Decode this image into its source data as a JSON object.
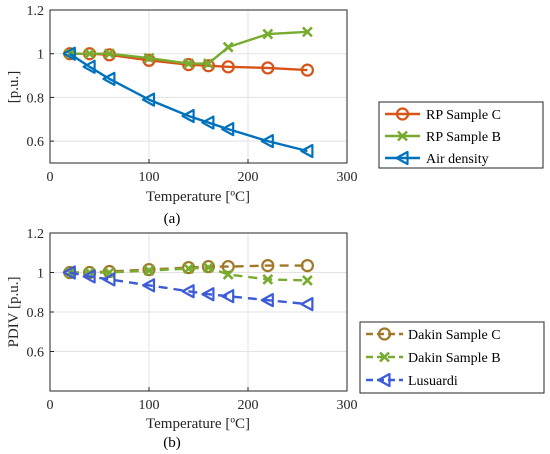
{
  "chart_data": [
    {
      "type": "line",
      "panel_id": "a",
      "caption": "(a)",
      "xlabel": "Temperature [ºC]",
      "ylabel": "[p.u.]",
      "xlim": [
        0,
        300
      ],
      "ylim": [
        0.5,
        1.2
      ],
      "xticks": [
        0,
        100,
        200,
        300
      ],
      "yticks": [
        0.6,
        0.8,
        1,
        1.2
      ],
      "xtick_labels": [
        "0",
        "100",
        "200",
        "300"
      ],
      "ytick_labels": [
        "0.6",
        "0.8",
        "1",
        "1.2"
      ],
      "grid": true,
      "legend_position": "right",
      "series": [
        {
          "name": "RP Sample C",
          "color": "#d95319",
          "marker": "circle",
          "dashed": false,
          "x": [
            20,
            40,
            60,
            100,
            140,
            160,
            180,
            220,
            260
          ],
          "y": [
            1.0,
            1.0,
            0.995,
            0.97,
            0.95,
            0.945,
            0.94,
            0.935,
            0.925
          ]
        },
        {
          "name": "RP Sample B",
          "color": "#77ac30",
          "marker": "x",
          "dashed": false,
          "x": [
            20,
            40,
            60,
            100,
            140,
            160,
            180,
            220,
            260
          ],
          "y": [
            1.0,
            1.0,
            1.0,
            0.98,
            0.955,
            0.955,
            1.03,
            1.09,
            1.1
          ]
        },
        {
          "name": "Air density",
          "color": "#0072bd",
          "marker": "triangle-left",
          "dashed": false,
          "x": [
            20,
            40,
            60,
            100,
            140,
            160,
            180,
            220,
            260
          ],
          "y": [
            1.0,
            0.94,
            0.885,
            0.79,
            0.715,
            0.685,
            0.655,
            0.6,
            0.555
          ]
        }
      ]
    },
    {
      "type": "line",
      "panel_id": "b",
      "caption": "(b)",
      "xlabel": "Temperature [ºC]",
      "ylabel": "PDIV [p.u.]",
      "xlim": [
        0,
        300
      ],
      "ylim": [
        0.4,
        1.2
      ],
      "xticks": [
        0,
        100,
        200,
        300
      ],
      "yticks": [
        0.6,
        0.8,
        1,
        1.2
      ],
      "xtick_labels": [
        "0",
        "100",
        "200",
        "300"
      ],
      "ytick_labels": [
        "0.6",
        "0.8",
        "1",
        "1.2"
      ],
      "grid": true,
      "legend_position": "right",
      "series": [
        {
          "name": "Dakin Sample C",
          "color": "#a0782a",
          "marker": "circle",
          "dashed": true,
          "x": [
            20,
            40,
            60,
            100,
            140,
            160,
            180,
            220,
            260
          ],
          "y": [
            1.0,
            1.0,
            1.005,
            1.015,
            1.025,
            1.03,
            1.03,
            1.035,
            1.035
          ]
        },
        {
          "name": "Dakin Sample B",
          "color": "#77ac30",
          "marker": "x",
          "dashed": true,
          "x": [
            20,
            40,
            60,
            100,
            140,
            160,
            180,
            220,
            260
          ],
          "y": [
            1.0,
            1.0,
            1.0,
            1.01,
            1.02,
            1.025,
            0.99,
            0.965,
            0.96
          ]
        },
        {
          "name": "Lusuardi",
          "color": "#3c5bd6",
          "marker": "triangle-left",
          "dashed": true,
          "x": [
            20,
            40,
            60,
            100,
            140,
            160,
            180,
            220,
            260
          ],
          "y": [
            1.0,
            0.98,
            0.965,
            0.935,
            0.905,
            0.89,
            0.88,
            0.86,
            0.84
          ]
        }
      ]
    }
  ]
}
